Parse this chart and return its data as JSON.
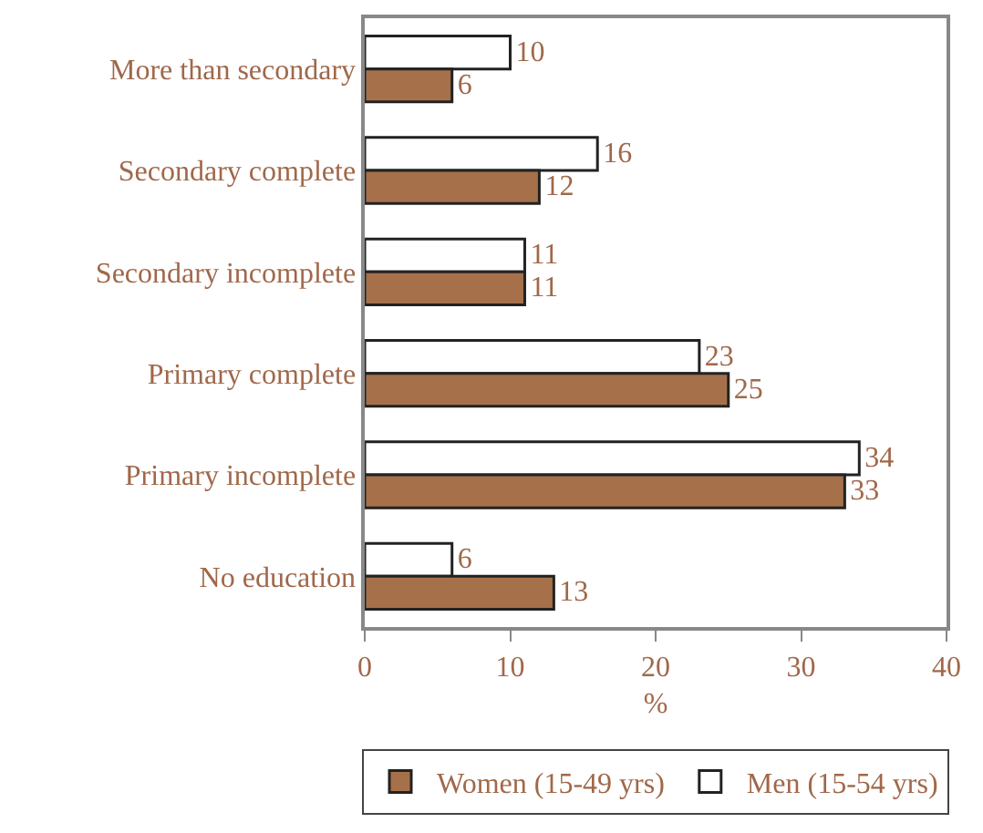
{
  "chart_data": {
    "type": "bar",
    "orientation": "horizontal",
    "xlabel": "%",
    "categories": [
      "More than secondary",
      "Secondary complete",
      "Secondary incomplete",
      "Primary complete",
      "Primary incomplete",
      "No education"
    ],
    "series": [
      {
        "name": "Women (15-49 yrs)",
        "color": "#a6714a",
        "values": [
          6,
          12,
          11,
          25,
          33,
          13
        ]
      },
      {
        "name": "Men (15-54 yrs)",
        "color": "#ffffff",
        "values": [
          10,
          16,
          11,
          23,
          34,
          6
        ]
      }
    ],
    "xlim": [
      0,
      40
    ],
    "xticks": [
      0,
      10,
      20,
      30,
      40
    ],
    "data_labels": true,
    "grid": false,
    "legend": "bottom"
  }
}
